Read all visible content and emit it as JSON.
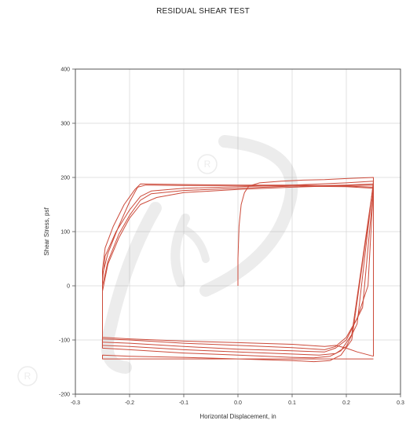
{
  "chart_data": {
    "type": "line",
    "title": "RESIDUAL SHEAR TEST",
    "xlabel": "Horizontal Displacement, in",
    "ylabel": "Shear Stress, psf",
    "xlim": [
      -0.3,
      0.3
    ],
    "ylim": [
      -200,
      400
    ],
    "xticks": [
      "-0.3",
      "-0.2",
      "-0.1",
      "0.0",
      "0.1",
      "0.2",
      "0.3"
    ],
    "yticks": [
      "-200",
      "-100",
      "0",
      "100",
      "200",
      "300",
      "400"
    ],
    "grid": true,
    "legend": "none",
    "series_color": "#cc4a3a",
    "series": [
      {
        "x": [
          0.0,
          0.0,
          0.002,
          0.006,
          0.012,
          0.02,
          0.04,
          0.08,
          0.12,
          0.16,
          0.2,
          0.25,
          0.25
        ],
        "y": [
          0,
          50,
          110,
          150,
          172,
          184,
          190,
          193,
          195,
          196,
          198,
          200,
          -130
        ]
      },
      {
        "x": [
          0.25,
          0.22,
          0.2,
          0.18,
          0.16,
          0.1,
          0.0,
          -0.1,
          -0.2,
          -0.25,
          -0.25,
          -0.245,
          -0.23,
          -0.21,
          -0.19,
          -0.18,
          -0.1,
          0.0,
          0.1,
          0.2,
          0.25
        ],
        "y": [
          -130,
          -122,
          -115,
          -110,
          -112,
          -108,
          -105,
          -102,
          -98,
          -95,
          30,
          70,
          110,
          150,
          178,
          188,
          187,
          186,
          186,
          184,
          182
        ]
      },
      {
        "x": [
          0.25,
          0.24,
          0.22,
          0.2,
          0.18,
          0.16,
          0.1,
          0.0,
          -0.1,
          -0.2,
          -0.25,
          -0.25,
          -0.24,
          -0.22,
          -0.2,
          -0.185,
          -0.17,
          -0.1,
          0.0,
          0.1,
          0.2,
          0.25
        ],
        "y": [
          182,
          0,
          -60,
          -95,
          -112,
          -118,
          -114,
          -110,
          -106,
          -100,
          -98,
          20,
          60,
          110,
          155,
          182,
          186,
          185,
          185,
          184,
          183,
          180
        ]
      },
      {
        "x": [
          0.25,
          0.23,
          0.2,
          0.18,
          0.16,
          0.1,
          0.0,
          -0.1,
          -0.2,
          -0.25,
          -0.25,
          -0.245,
          -0.225,
          -0.2,
          -0.18,
          -0.16,
          -0.1,
          0.0,
          0.1,
          0.2,
          0.25
        ],
        "y": [
          180,
          -40,
          -100,
          -115,
          -122,
          -120,
          -117,
          -112,
          -106,
          -104,
          10,
          55,
          100,
          140,
          165,
          175,
          180,
          183,
          186,
          190,
          193
        ]
      },
      {
        "x": [
          0.25,
          0.22,
          0.2,
          0.18,
          0.15,
          0.1,
          0.0,
          -0.1,
          -0.2,
          -0.25,
          -0.25,
          -0.24,
          -0.22,
          -0.2,
          -0.18,
          -0.16,
          -0.1,
          0.0,
          0.1,
          0.2,
          0.25
        ],
        "y": [
          193,
          -70,
          -112,
          -125,
          -128,
          -126,
          -122,
          -118,
          -112,
          -110,
          0,
          45,
          95,
          130,
          158,
          170,
          176,
          180,
          184,
          186,
          188
        ]
      },
      {
        "x": [
          0.25,
          0.21,
          0.19,
          0.17,
          0.14,
          0.1,
          0.0,
          -0.1,
          -0.2,
          -0.25,
          -0.25,
          -0.24,
          -0.22,
          -0.2,
          -0.18,
          -0.15,
          -0.1,
          0.0,
          0.1,
          0.2,
          0.25
        ],
        "y": [
          188,
          -90,
          -120,
          -130,
          -133,
          -132,
          -128,
          -124,
          -118,
          -115,
          -10,
          40,
          88,
          125,
          150,
          163,
          172,
          178,
          182,
          185,
          186
        ]
      },
      {
        "x": [
          0.25,
          0.21,
          0.19,
          0.17,
          0.14,
          0.1,
          0.0,
          -0.1,
          -0.2,
          -0.25,
          -0.25,
          0.25
        ],
        "y": [
          186,
          -100,
          -128,
          -138,
          -140,
          -138,
          -135,
          -132,
          -130,
          -128,
          -135,
          -135
        ]
      }
    ]
  }
}
